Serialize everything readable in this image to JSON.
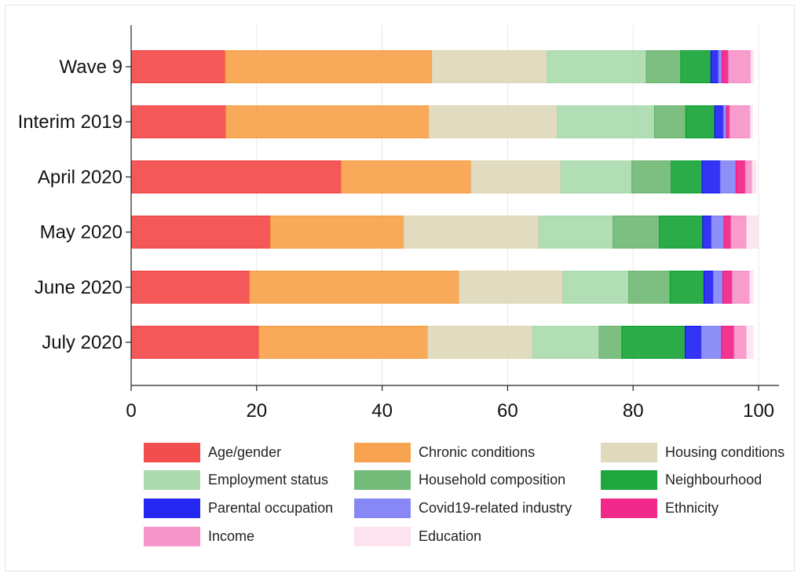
{
  "chart_data": {
    "type": "bar",
    "orientation": "horizontal",
    "stacked": true,
    "categories": [
      "Wave 9",
      "Interim 2019",
      "April 2020",
      "May 2020",
      "June 2020",
      "July 2020"
    ],
    "xlim": [
      0,
      100
    ],
    "xticks": [
      0,
      20,
      40,
      60,
      80,
      100
    ],
    "grid": true,
    "legend_position": "bottom",
    "series": [
      {
        "name": "Age/gender",
        "color": "#f23b3b",
        "values": [
          15.0,
          15.1,
          33.5,
          22.2,
          18.9,
          20.4
        ]
      },
      {
        "name": "Chronic conditions",
        "color": "#f79a3c",
        "values": [
          33.0,
          32.4,
          20.7,
          21.3,
          33.4,
          26.9
        ]
      },
      {
        "name": "Housing conditions",
        "color": "#dcd6b4",
        "values": [
          18.3,
          20.4,
          14.3,
          21.5,
          16.5,
          16.7
        ]
      },
      {
        "name": "Employment status",
        "color": "#a4d8a9",
        "values": [
          15.8,
          15.5,
          11.3,
          11.8,
          10.5,
          10.6
        ]
      },
      {
        "name": "Household composition",
        "color": "#66b36b",
        "values": [
          5.5,
          5.0,
          6.3,
          7.4,
          6.6,
          3.6
        ]
      },
      {
        "name": "Neighbourhood",
        "color": "#069e29",
        "values": [
          4.8,
          4.6,
          4.9,
          6.9,
          5.4,
          10.1
        ]
      },
      {
        "name": "Parental occupation",
        "color": "#1010f2",
        "values": [
          1.2,
          1.4,
          2.9,
          1.4,
          1.5,
          2.6
        ]
      },
      {
        "name": "Covid19-related industry",
        "color": "#7b7cf6",
        "values": [
          0.6,
          0.5,
          2.5,
          2.0,
          1.5,
          3.2
        ]
      },
      {
        "name": "Ethnicity",
        "color": "#f0127e",
        "values": [
          1.0,
          0.5,
          1.5,
          1.1,
          1.5,
          2.0
        ]
      },
      {
        "name": "Income",
        "color": "#f68bc4",
        "values": [
          3.6,
          3.3,
          1.1,
          2.5,
          2.8,
          2.0
        ]
      },
      {
        "name": "Education",
        "color": "#fce1ef",
        "values": [
          0.4,
          0.3,
          0.6,
          1.8,
          0.5,
          1.0
        ]
      }
    ]
  }
}
